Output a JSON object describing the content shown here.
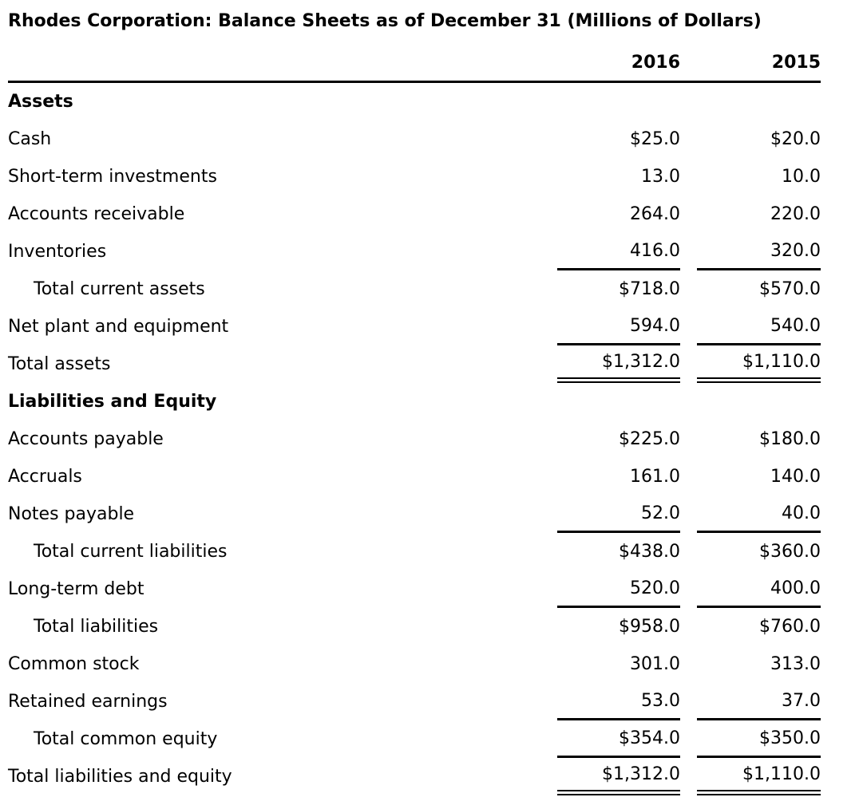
{
  "title": "Rhodes Corporation: Balance Sheets as of December 31 (Millions of Dollars)",
  "header": {
    "col_2016": "2016",
    "col_2015": "2015"
  },
  "rows": [
    {
      "label": "Assets",
      "style": "section"
    },
    {
      "label": "Cash",
      "v2016": "$25.0",
      "v2015": "$20.0"
    },
    {
      "label": "Short-term investments",
      "v2016": "13.0",
      "v2015": "10.0"
    },
    {
      "label": "Accounts receivable",
      "v2016": "264.0",
      "v2015": "220.0"
    },
    {
      "label": "Inventories",
      "v2016": "416.0",
      "v2015": "320.0",
      "rule_below": "single"
    },
    {
      "label": "Total current assets",
      "v2016": "$718.0",
      "v2015": "$570.0",
      "indent": true
    },
    {
      "label": "Net plant and equipment",
      "v2016": "594.0",
      "v2015": "540.0",
      "rule_below": "single"
    },
    {
      "label": "Total assets",
      "v2016": "$1,312.0",
      "v2015": "$1,110.0",
      "rule_below": "double"
    },
    {
      "label": "Liabilities and Equity",
      "style": "section"
    },
    {
      "label": "Accounts payable",
      "v2016": "$225.0",
      "v2015": "$180.0"
    },
    {
      "label": "Accruals",
      "v2016": "161.0",
      "v2015": "140.0"
    },
    {
      "label": "Notes payable",
      "v2016": "52.0",
      "v2015": "40.0",
      "rule_below": "single"
    },
    {
      "label": "Total current liabilities",
      "v2016": "$438.0",
      "v2015": "$360.0",
      "indent": true
    },
    {
      "label": "Long-term debt",
      "v2016": "520.0",
      "v2015": "400.0",
      "rule_below": "single"
    },
    {
      "label": "Total liabilities",
      "v2016": "$958.0",
      "v2015": "$760.0",
      "indent": true
    },
    {
      "label": "Common stock",
      "v2016": "301.0",
      "v2015": "313.0"
    },
    {
      "label": "Retained earnings",
      "v2016": "53.0",
      "v2015": "37.0",
      "rule_below": "single"
    },
    {
      "label": "Total common equity",
      "v2016": "$354.0",
      "v2015": "$350.0",
      "indent": true,
      "rule_below": "single"
    },
    {
      "label": "Total liabilities and equity",
      "v2016": "$1,312.0",
      "v2015": "$1,110.0",
      "rule_below": "double"
    }
  ],
  "colors": {
    "background": "#ffffff",
    "text": "#000000",
    "rule": "#000000"
  }
}
